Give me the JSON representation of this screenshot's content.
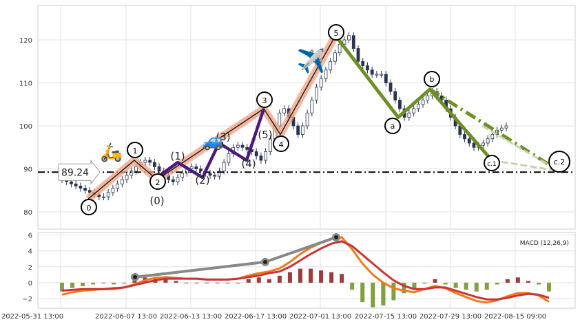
{
  "chart_data": [
    {
      "type": "candlestick",
      "ylim": [
        76,
        128
      ],
      "yticks": [
        80,
        90,
        100,
        110,
        120
      ],
      "grid": true,
      "xtick_labels": [
        "2022-05-31 13:00",
        "2022-06-07 13:00",
        "2022-06-13 13:00",
        "2022-06-17 13:00",
        "2022-07-01 13:00",
        "2022-07-15 13:00",
        "2022-07-29 13:00",
        "2022-08-15 09:00"
      ],
      "close": [
        87.5,
        87,
        86.5,
        86,
        85.5,
        85,
        84.5,
        84,
        83.5,
        83.5,
        84.5,
        85.5,
        86.5,
        87.5,
        88.5,
        89.5,
        90.5,
        91.5,
        92,
        91.5,
        90.5,
        89.5,
        88.5,
        87.5,
        87,
        88,
        89,
        90,
        90.5,
        90,
        89.5,
        89,
        88.5,
        88.3,
        89.5,
        91.5,
        93.5,
        95,
        95.5,
        95,
        94.5,
        94,
        93,
        92,
        94,
        97,
        100,
        103,
        104,
        102,
        100,
        98,
        100,
        103,
        106,
        109,
        111,
        113,
        115,
        117,
        119,
        120,
        121,
        118,
        115,
        114,
        113,
        112,
        112,
        112,
        110,
        108,
        106,
        104,
        102,
        103,
        104,
        105,
        106,
        107,
        108,
        107,
        106,
        104,
        102,
        100,
        98,
        97,
        96,
        95,
        95.5,
        96,
        97,
        98,
        99,
        99.5,
        100
      ],
      "hline": {
        "value": 89.24,
        "label": "89.24"
      },
      "waves": {
        "impulse": [
          {
            "label": "0",
            "value": 83
          },
          {
            "label": "1",
            "value": 92
          },
          {
            "label": "2",
            "value": 87.5
          },
          {
            "label": "3",
            "value": 104
          },
          {
            "label": "4",
            "value": 98
          },
          {
            "label": "5",
            "value": 121
          }
        ],
        "sub_wave_labels": [
          "(0)",
          "(1)",
          "(2)",
          "(3)",
          "(4)",
          "(5)"
        ],
        "correction": [
          {
            "label": "a",
            "value": 102
          },
          {
            "label": "b",
            "value": 108.5
          },
          {
            "label": "c.1",
            "value": 92
          },
          {
            "label": "c.2",
            "value": 89.5
          }
        ]
      },
      "icons": [
        "scooter-icon",
        "car-icon",
        "airplane-icon"
      ]
    },
    {
      "type": "macd",
      "legend": "MACD (12,26,9)",
      "ylim": [
        -3.2,
        6.3
      ],
      "yticks": [
        -2,
        0,
        2,
        4,
        6
      ],
      "macd": [
        -1.5,
        -1.2,
        -1,
        -0.9,
        -0.8,
        -0.8,
        -0.6,
        -0.2,
        0.3,
        0.6,
        0.7,
        0.6,
        0.5,
        0.5,
        0.4,
        0.4,
        0.4,
        0.5,
        0.9,
        1.2,
        1.4,
        1.8,
        2.6,
        3.6,
        4.4,
        5.0,
        5.5,
        5.7,
        4.2,
        2.4,
        1.0,
        0.0,
        -0.7,
        -1.0,
        -1.2,
        -0.8,
        -0.4,
        -0.7,
        -1.3,
        -1.8,
        -2.3,
        -2.5,
        -2.2,
        -1.7,
        -1.3,
        -1.3,
        -1.6,
        -2.4
      ],
      "signal": [
        -1.0,
        -0.9,
        -0.8,
        -0.8,
        -0.8,
        -0.7,
        -0.6,
        -0.3,
        0.0,
        0.3,
        0.5,
        0.5,
        0.5,
        0.5,
        0.4,
        0.4,
        0.4,
        0.5,
        0.7,
        0.9,
        1.2,
        1.4,
        2.0,
        2.8,
        3.6,
        4.3,
        4.9,
        5.2,
        4.6,
        3.5,
        2.4,
        1.3,
        0.3,
        -0.4,
        -0.8,
        -0.8,
        -0.6,
        -0.6,
        -1.0,
        -1.4,
        -1.8,
        -2.1,
        -2.1,
        -1.9,
        -1.6,
        -1.4,
        -1.5,
        -1.9
      ],
      "divergence_line": [
        0.7,
        2.6,
        5.7
      ]
    }
  ]
}
